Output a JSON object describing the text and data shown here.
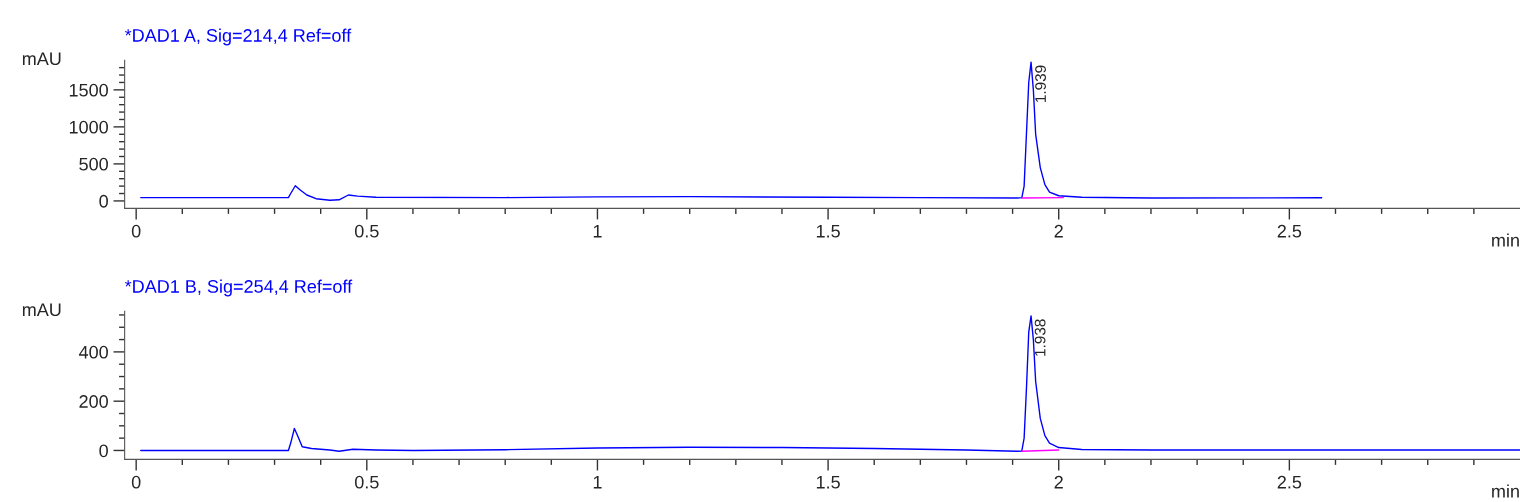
{
  "chart_data": [
    {
      "type": "line",
      "title": "*DAD1 A, Sig=214,4 Ref=off",
      "ylabel": "mAU",
      "xlabel": "min",
      "xlim": [
        -0.025,
        3.0
      ],
      "xticks": [
        0,
        {
          "value": 0.1,
          "label": null
        },
        {
          "value": 0.2,
          "label": null
        },
        {
          "value": 0.3,
          "label": null
        },
        {
          "value": 0.4,
          "label": null
        },
        0.5,
        {
          "value": 0.6,
          "label": null
        },
        {
          "value": 0.7,
          "label": null
        },
        {
          "value": 0.8,
          "label": null
        },
        {
          "value": 0.9,
          "label": null
        },
        1,
        {
          "value": 1.1,
          "label": null
        },
        {
          "value": 1.2,
          "label": null
        },
        {
          "value": 1.3,
          "label": null
        },
        {
          "value": 1.4,
          "label": null
        },
        1.5,
        {
          "value": 1.6,
          "label": null
        },
        {
          "value": 1.7,
          "label": null
        },
        {
          "value": 1.8,
          "label": null
        },
        {
          "value": 1.9,
          "label": null
        },
        2,
        {
          "value": 2.1,
          "label": null
        },
        {
          "value": 2.2,
          "label": null
        },
        {
          "value": 2.3,
          "label": null
        },
        {
          "value": 2.4,
          "label": null
        },
        2.5,
        {
          "value": 2.6,
          "label": null
        },
        {
          "value": 2.7,
          "label": null
        },
        {
          "value": 2.8,
          "label": null
        },
        {
          "value": 2.9,
          "label": null
        }
      ],
      "ylim": [
        -100,
        1900
      ],
      "yticks": [
        0,
        {
          "value": 100,
          "label": null
        },
        {
          "value": 200,
          "label": null
        },
        {
          "value": 300,
          "label": null
        },
        {
          "value": 400,
          "label": null
        },
        500,
        {
          "value": 600,
          "label": null
        },
        {
          "value": 700,
          "label": null
        },
        {
          "value": 800,
          "label": null
        },
        {
          "value": 900,
          "label": null
        },
        1000,
        {
          "value": 1100,
          "label": null
        },
        {
          "value": 1200,
          "label": null
        },
        {
          "value": 1300,
          "label": null
        },
        {
          "value": 1400,
          "label": null
        },
        1500,
        {
          "value": 1600,
          "label": null
        },
        {
          "value": 1700,
          "label": null
        },
        {
          "value": 1800,
          "label": null
        }
      ],
      "series": [
        {
          "color": "#0000ff",
          "x": [
            0.01,
            0.33,
            0.335,
            0.345,
            0.355,
            0.37,
            0.39,
            0.42,
            0.44,
            0.46,
            0.48,
            0.52,
            0.8,
            1.0,
            1.2,
            1.5,
            1.7,
            1.91,
            1.92,
            1.925,
            1.93,
            1.935,
            1.94,
            1.945,
            1.95,
            1.96,
            1.97,
            1.98,
            2.0,
            2.05,
            2.2,
            2.57
          ],
          "values": [
            45,
            45,
            100,
            205,
            150,
            80,
            30,
            10,
            15,
            80,
            65,
            50,
            45,
            55,
            58,
            50,
            45,
            40,
            45,
            200,
            900,
            1600,
            1875,
            1500,
            900,
            450,
            220,
            120,
            70,
            50,
            40,
            42
          ]
        },
        {
          "color": "#ff00ff",
          "x": [
            1.92,
            2.01
          ],
          "values": [
            40,
            45
          ]
        }
      ],
      "annotations": [
        {
          "text": "1.939",
          "x": 1.939,
          "y": 1875
        }
      ]
    },
    {
      "type": "line",
      "title": "*DAD1 B, Sig=254,4 Ref=off",
      "ylabel": "mAU",
      "xlabel": "min",
      "xlim": [
        -0.025,
        3.0
      ],
      "xticks": [
        0,
        {
          "value": 0.1,
          "label": null
        },
        {
          "value": 0.2,
          "label": null
        },
        {
          "value": 0.3,
          "label": null
        },
        {
          "value": 0.4,
          "label": null
        },
        0.5,
        {
          "value": 0.6,
          "label": null
        },
        {
          "value": 0.7,
          "label": null
        },
        {
          "value": 0.8,
          "label": null
        },
        {
          "value": 0.9,
          "label": null
        },
        1,
        {
          "value": 1.1,
          "label": null
        },
        {
          "value": 1.2,
          "label": null
        },
        {
          "value": 1.3,
          "label": null
        },
        {
          "value": 1.4,
          "label": null
        },
        1.5,
        {
          "value": 1.6,
          "label": null
        },
        {
          "value": 1.7,
          "label": null
        },
        {
          "value": 1.8,
          "label": null
        },
        {
          "value": 1.9,
          "label": null
        },
        2,
        {
          "value": 2.1,
          "label": null
        },
        {
          "value": 2.2,
          "label": null
        },
        {
          "value": 2.3,
          "label": null
        },
        {
          "value": 2.4,
          "label": null
        },
        2.5,
        {
          "value": 2.6,
          "label": null
        },
        {
          "value": 2.7,
          "label": null
        },
        {
          "value": 2.8,
          "label": null
        },
        {
          "value": 2.9,
          "label": null
        }
      ],
      "ylim": [
        -36,
        565
      ],
      "yticks": [
        0,
        {
          "value": 50,
          "label": null
        },
        {
          "value": 100,
          "label": null
        },
        {
          "value": 150,
          "label": null
        },
        200,
        {
          "value": 250,
          "label": null
        },
        {
          "value": 300,
          "label": null
        },
        {
          "value": 350,
          "label": null
        },
        400,
        {
          "value": 450,
          "label": null
        },
        {
          "value": 500,
          "label": null
        },
        {
          "value": 550,
          "label": null
        }
      ],
      "series": [
        {
          "color": "#0000ff",
          "x": [
            0.01,
            0.33,
            0.335,
            0.343,
            0.35,
            0.36,
            0.38,
            0.42,
            0.44,
            0.47,
            0.52,
            0.6,
            0.8,
            1.0,
            1.2,
            1.4,
            1.6,
            1.8,
            1.91,
            1.92,
            1.925,
            1.93,
            1.935,
            1.94,
            1.945,
            1.95,
            1.96,
            1.97,
            1.98,
            2.0,
            2.05,
            2.2,
            2.5,
            3.0
          ],
          "values": [
            0,
            0,
            30,
            89,
            60,
            15,
            8,
            2,
            -3,
            5,
            2,
            0,
            3,
            10,
            13,
            12,
            8,
            2,
            -3,
            -2,
            50,
            250,
            480,
            546,
            450,
            280,
            130,
            60,
            30,
            12,
            4,
            2,
            2,
            2
          ]
        },
        {
          "color": "#ff00ff",
          "x": [
            1.92,
            2.0
          ],
          "values": [
            -3,
            2
          ]
        }
      ],
      "annotations": [
        {
          "text": "1.938",
          "x": 1.938,
          "y": 546
        }
      ]
    }
  ]
}
